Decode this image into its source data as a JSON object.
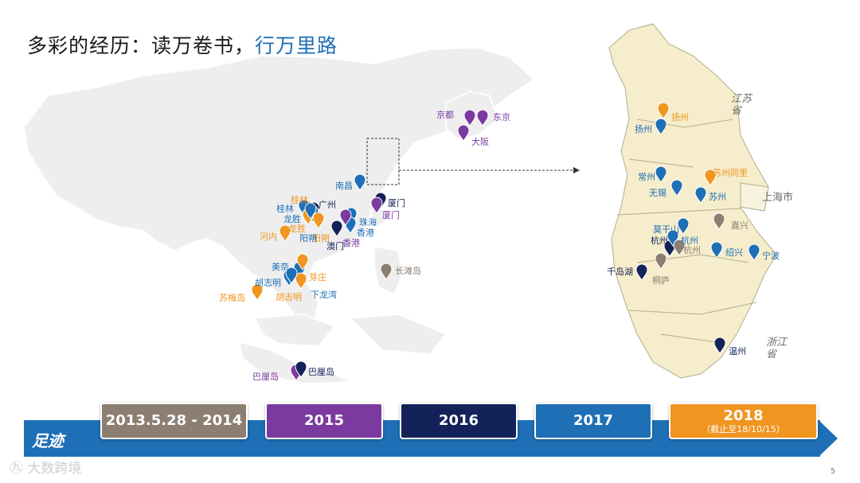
{
  "title": {
    "main": "多彩的经历：读万卷书，",
    "highlight": "行万里路"
  },
  "colors": {
    "p2014": "#8c7f72",
    "p2015": "#7b3aa0",
    "p2016": "#14225a",
    "p2017": "#1e6fb5",
    "p2018": "#f0951f"
  },
  "timeline": {
    "label": "足迹",
    "periods": [
      {
        "label": "2013.5.28 - 2014",
        "sub": ""
      },
      {
        "label": "2015",
        "sub": ""
      },
      {
        "label": "2016",
        "sub": ""
      },
      {
        "label": "2017",
        "sub": ""
      },
      {
        "label": "2018",
        "sub": "（截止至18/10/15）"
      }
    ]
  },
  "region_labels": {
    "jiangsu": "江苏\n省",
    "shanghai": "上海市",
    "zhejiang": "浙江\n省"
  },
  "asia_pins": [
    {
      "label": "京都",
      "color": "p2015"
    },
    {
      "label": "东京",
      "color": "p2015"
    },
    {
      "label": "大阪",
      "color": "p2015"
    },
    {
      "label": "南昌",
      "color": "p2017"
    },
    {
      "label": "厦门",
      "color": "p2016"
    },
    {
      "label": "厦门",
      "color": "p2015"
    },
    {
      "label": "桂林",
      "color": "p2018"
    },
    {
      "label": "桂林",
      "color": "p2017"
    },
    {
      "label": "广州",
      "color": "p2016"
    },
    {
      "label": "珠海",
      "color": "p2017"
    },
    {
      "label": "香港",
      "color": "p2017"
    },
    {
      "label": "香港",
      "color": "p2015"
    },
    {
      "label": "龙胜",
      "color": "p2017"
    },
    {
      "label": "龙胜",
      "color": "p2018"
    },
    {
      "label": "阳朔",
      "color": "p2018"
    },
    {
      "label": "阳朔",
      "color": "p2017"
    },
    {
      "label": "澳门",
      "color": "p2016"
    },
    {
      "label": "河内",
      "color": "p2018"
    },
    {
      "label": "美奈",
      "color": "p2017"
    },
    {
      "label": "芽庄",
      "color": "p2018"
    },
    {
      "label": "胡志明",
      "color": "p2017"
    },
    {
      "label": "胡志明",
      "color": "p2018"
    },
    {
      "label": "下龙湾",
      "color": "p2017"
    },
    {
      "label": "苏梅岛",
      "color": "p2018"
    },
    {
      "label": "长滩岛",
      "color": "p2014"
    },
    {
      "label": "巴厘岛",
      "color": "p2015"
    },
    {
      "label": "巴厘岛",
      "color": "p2016"
    }
  ],
  "jz_pins": [
    {
      "label": "扬州",
      "color": "p2018"
    },
    {
      "label": "扬州",
      "color": "p2017"
    },
    {
      "label": "常州",
      "color": "p2017"
    },
    {
      "label": "无锡",
      "color": "p2017"
    },
    {
      "label": "苏州同里",
      "color": "p2018"
    },
    {
      "label": "苏州",
      "color": "p2017"
    },
    {
      "label": "嘉兴",
      "color": "p2014"
    },
    {
      "label": "莫干山",
      "color": "p2017"
    },
    {
      "label": "杭州",
      "color": "p2016"
    },
    {
      "label": "杭州",
      "color": "p2017"
    },
    {
      "label": "杭州",
      "color": "p2014"
    },
    {
      "label": "绍兴",
      "color": "p2017"
    },
    {
      "label": "宁波",
      "color": "p2017"
    },
    {
      "label": "千岛湖",
      "color": "p2016"
    },
    {
      "label": "桐庐",
      "color": "p2014"
    },
    {
      "label": "温州",
      "color": "p2016"
    }
  ],
  "watermark": "大数跨境",
  "page_number": "5"
}
